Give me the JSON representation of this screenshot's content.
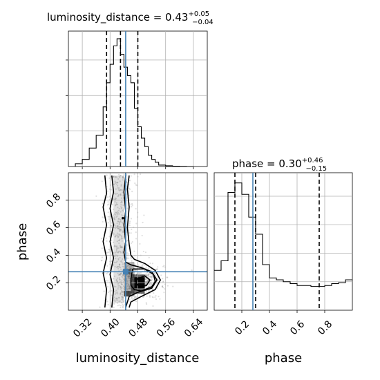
{
  "colors": {
    "truth": "#4682b4",
    "grid": "#b0b0b0",
    "line": "#000000",
    "points": "#555555"
  },
  "chart_data": {
    "type": "corner",
    "parameters": [
      "luminosity_distance",
      "phase"
    ],
    "truths": {
      "luminosity_distance": 0.445,
      "phase": 0.28
    },
    "grid": true,
    "panels": [
      {
        "id": "luminosity_distance_hist",
        "type": "histogram",
        "parameter": "luminosity_distance",
        "title": "luminosity_distance = 0.43",
        "title_sup": "+0.05",
        "title_sub": "−0.04",
        "title_text": "luminosity_distance = 0.43",
        "xlim": [
          0.28,
          0.68
        ],
        "bins_edges": [
          0.3,
          0.32,
          0.34,
          0.36,
          0.38,
          0.39,
          0.4,
          0.41,
          0.42,
          0.43,
          0.44,
          0.45,
          0.46,
          0.47,
          0.48,
          0.49,
          0.5,
          0.51,
          0.52,
          0.53,
          0.54,
          0.56,
          0.58,
          0.6,
          0.62,
          0.64
        ],
        "counts": [
          0.2,
          0.5,
          1.3,
          2.2,
          4.2,
          5.9,
          7.2,
          8.5,
          9.0,
          7.9,
          7.0,
          6.4,
          5.9,
          4.1,
          2.8,
          2.0,
          1.4,
          0.8,
          0.5,
          0.3,
          0.1,
          0.05,
          0.02,
          0.01,
          0.0
        ],
        "quantiles": [
          0.39,
          0.43,
          0.48
        ]
      },
      {
        "id": "phase_hist",
        "type": "histogram",
        "parameter": "phase",
        "title_text": "phase = 0.30",
        "title_sup": "+0.46",
        "title_sub": "−0.15",
        "xlim": [
          0.0,
          1.0
        ],
        "xticks": [
          "0.2",
          "0.4",
          "0.6",
          "0.8"
        ],
        "xlabel": "phase",
        "bins_edges": [
          0.0,
          0.05,
          0.1,
          0.15,
          0.2,
          0.25,
          0.3,
          0.35,
          0.4,
          0.45,
          0.5,
          0.55,
          0.6,
          0.65,
          0.7,
          0.75,
          0.8,
          0.85,
          0.9,
          0.95,
          1.0
        ],
        "counts": [
          2.1,
          2.6,
          6.2,
          6.7,
          6.1,
          4.9,
          4.0,
          2.4,
          1.7,
          1.6,
          1.5,
          1.4,
          1.3,
          1.3,
          1.25,
          1.25,
          1.3,
          1.4,
          1.45,
          1.6
        ],
        "quantiles": [
          0.15,
          0.3,
          0.76
        ]
      },
      {
        "id": "joint",
        "type": "2d-histogram",
        "x_parameter": "luminosity_distance",
        "y_parameter": "phase",
        "xlim": [
          0.28,
          0.68
        ],
        "ylim": [
          0.0,
          1.0
        ],
        "xticks": [
          "0.32",
          "0.40",
          "0.48",
          "0.56",
          "0.64"
        ],
        "yticks": [
          "0.2",
          "0.4",
          "0.6",
          "0.8"
        ],
        "xlabel": "luminosity_distance",
        "ylabel": "phase",
        "density_blocks": [
          {
            "x0": 0.41,
            "x1": 0.44,
            "y0": 0.05,
            "y1": 0.98,
            "level": 0.12
          },
          {
            "x0": 0.44,
            "x1": 0.47,
            "y0": 0.1,
            "y1": 0.35,
            "level": 0.3
          },
          {
            "x0": 0.46,
            "x1": 0.5,
            "y0": 0.12,
            "y1": 0.26,
            "level": 0.55
          },
          {
            "x0": 0.47,
            "x1": 0.5,
            "y0": 0.16,
            "y1": 0.24,
            "level": 0.95
          },
          {
            "x0": 0.44,
            "x1": 0.46,
            "y0": 0.26,
            "y1": 0.3,
            "level": 0.5
          },
          {
            "x0": 0.44,
            "x1": 0.46,
            "y0": 0.1,
            "y1": 0.14,
            "level": 0.6
          }
        ],
        "contours": [
          [
            [
              0.385,
              0.98
            ],
            [
              0.39,
              0.85
            ],
            [
              0.38,
              0.75
            ],
            [
              0.39,
              0.62
            ],
            [
              0.38,
              0.5
            ],
            [
              0.39,
              0.38
            ],
            [
              0.38,
              0.27
            ],
            [
              0.39,
              0.15
            ],
            [
              0.385,
              0.02
            ]
          ],
          [
            [
              0.405,
              0.98
            ],
            [
              0.41,
              0.86
            ],
            [
              0.4,
              0.74
            ],
            [
              0.41,
              0.62
            ],
            [
              0.4,
              0.5
            ],
            [
              0.41,
              0.38
            ],
            [
              0.4,
              0.26
            ],
            [
              0.41,
              0.15
            ],
            [
              0.405,
              0.02
            ]
          ],
          [
            [
              0.445,
              0.98
            ],
            [
              0.44,
              0.86
            ],
            [
              0.445,
              0.72
            ],
            [
              0.44,
              0.62
            ],
            [
              0.445,
              0.5
            ],
            [
              0.44,
              0.42
            ],
            [
              0.445,
              0.35
            ],
            [
              0.46,
              0.33
            ],
            [
              0.49,
              0.31
            ],
            [
              0.52,
              0.28
            ],
            [
              0.535,
              0.22
            ],
            [
              0.52,
              0.16
            ],
            [
              0.48,
              0.13
            ],
            [
              0.455,
              0.1
            ],
            [
              0.445,
              0.02
            ]
          ],
          [
            [
              0.455,
              0.98
            ],
            [
              0.45,
              0.88
            ],
            [
              0.455,
              0.75
            ],
            [
              0.45,
              0.6
            ],
            [
              0.455,
              0.48
            ],
            [
              0.46,
              0.4
            ],
            [
              0.47,
              0.37
            ],
            [
              0.5,
              0.34
            ],
            [
              0.53,
              0.29
            ],
            [
              0.545,
              0.22
            ],
            [
              0.53,
              0.15
            ],
            [
              0.49,
              0.1
            ],
            [
              0.46,
              0.06
            ],
            [
              0.455,
              0.02
            ]
          ],
          [
            [
              0.465,
              0.3
            ],
            [
              0.5,
              0.3
            ],
            [
              0.525,
              0.26
            ],
            [
              0.53,
              0.21
            ],
            [
              0.52,
              0.17
            ],
            [
              0.49,
              0.14
            ],
            [
              0.47,
              0.15
            ],
            [
              0.46,
              0.18
            ],
            [
              0.46,
              0.23
            ],
            [
              0.465,
              0.3
            ]
          ],
          [
            [
              0.48,
              0.23
            ],
            [
              0.5,
              0.25
            ],
            [
              0.515,
              0.22
            ],
            [
              0.505,
              0.18
            ],
            [
              0.485,
              0.17
            ],
            [
              0.475,
              0.2
            ],
            [
              0.48,
              0.23
            ]
          ]
        ]
      }
    ]
  }
}
